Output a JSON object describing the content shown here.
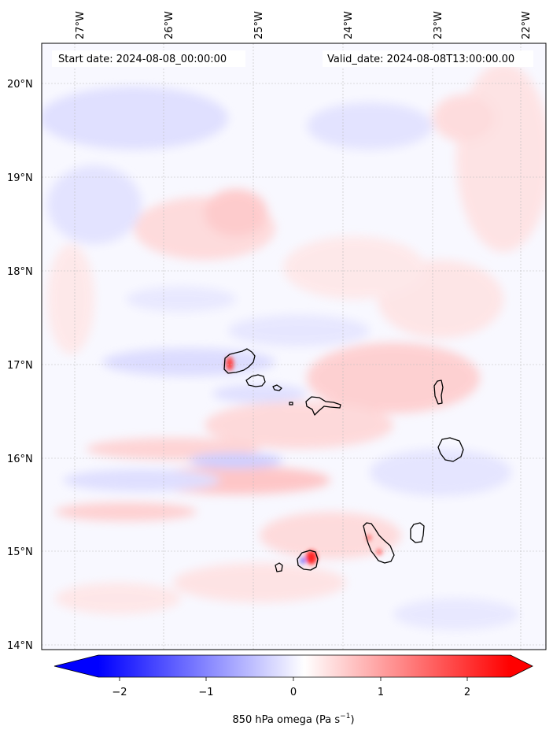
{
  "map": {
    "start_date": "Start date: 2024-08-08_00:00:00",
    "valid_date": "Valid_date: 2024-08-08T13:00:00.00",
    "lon_ticks": [
      "27°W",
      "26°W",
      "25°W",
      "24°W",
      "23°W",
      "22°W"
    ],
    "lat_ticks": [
      "20°N",
      "19°N",
      "18°N",
      "17°N",
      "16°N",
      "15°N",
      "14°N"
    ],
    "lon_values": [
      -27,
      -26,
      -25,
      -24,
      -23,
      -22
    ],
    "lat_values": [
      20,
      19,
      18,
      17,
      16,
      15,
      14
    ],
    "extent": {
      "lon_min": -27.4,
      "lon_max": -21.7,
      "lat_min": 13.95,
      "lat_max": 20.4
    },
    "gridlines": true,
    "coastlines": true,
    "islands": [
      "Santo Antão",
      "São Vicente",
      "Santa Luzia",
      "São Nicolau",
      "Sal",
      "Boa Vista",
      "Maio",
      "Santiago",
      "Fogo",
      "Brava"
    ]
  },
  "colorbar": {
    "label_main": "850 hPa omega (Pa s",
    "label_sup": "−1",
    "label_end": ")",
    "ticks": [
      "−2",
      "−1",
      "0",
      "1",
      "2"
    ],
    "tick_values": [
      -2,
      -1,
      0,
      1,
      2
    ],
    "vmin": -2.5,
    "vmax": 2.5,
    "colormap": "bwr",
    "color_low": "#0000ff",
    "color_mid": "#ffffff",
    "color_high": "#ff0000",
    "extend": "both"
  }
}
